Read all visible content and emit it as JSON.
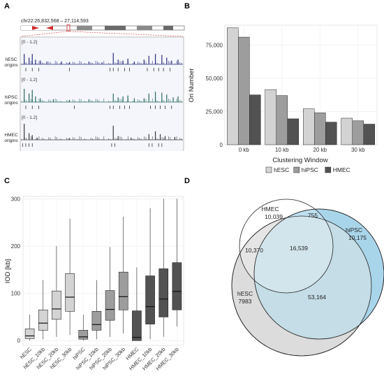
{
  "panels": {
    "a": {
      "letter": "A",
      "coords": "chr22:26,832,568 – 27,114,593",
      "tracks": [
        {
          "label_line1": "hESC",
          "label_line2": "origins",
          "range": "[0 - 1.2]",
          "color": "#2b2f7c",
          "peaks": [
            [
              0.02,
              0.55
            ],
            [
              0.05,
              0.35
            ],
            [
              0.07,
              0.55
            ],
            [
              0.09,
              0.25
            ],
            [
              0.12,
              0.2
            ],
            [
              0.16,
              0.15
            ],
            [
              0.25,
              0.15
            ],
            [
              0.3,
              0.12
            ],
            [
              0.42,
              0.15
            ],
            [
              0.5,
              0.1
            ],
            [
              0.57,
              0.6
            ],
            [
              0.6,
              0.25
            ],
            [
              0.63,
              0.2
            ],
            [
              0.66,
              0.3
            ],
            [
              0.7,
              0.15
            ],
            [
              0.76,
              0.25
            ],
            [
              0.79,
              0.45
            ],
            [
              0.83,
              0.55
            ],
            [
              0.87,
              0.5
            ],
            [
              0.9,
              0.35
            ],
            [
              0.93,
              0.2
            ],
            [
              0.97,
              0.25
            ]
          ],
          "ticks": [
            0.03,
            0.07,
            0.11,
            0.3,
            0.55,
            0.57,
            0.6,
            0.64,
            0.67,
            0.78,
            0.82,
            0.85,
            0.88,
            0.92
          ]
        },
        {
          "label_line1": "hiPSC",
          "label_line2": "origins",
          "range": "[0 - 1.2]",
          "color": "#2a6b5e",
          "peaks": [
            [
              0.02,
              0.7
            ],
            [
              0.05,
              0.45
            ],
            [
              0.07,
              0.65
            ],
            [
              0.09,
              0.3
            ],
            [
              0.12,
              0.2
            ],
            [
              0.2,
              0.15
            ],
            [
              0.3,
              0.12
            ],
            [
              0.42,
              0.15
            ],
            [
              0.57,
              0.45
            ],
            [
              0.6,
              0.25
            ],
            [
              0.63,
              0.3
            ],
            [
              0.66,
              0.35
            ],
            [
              0.7,
              0.2
            ],
            [
              0.76,
              0.2
            ],
            [
              0.79,
              0.45
            ],
            [
              0.83,
              0.55
            ],
            [
              0.87,
              0.5
            ],
            [
              0.9,
              0.4
            ],
            [
              0.94,
              0.25
            ],
            [
              0.97,
              0.3
            ]
          ],
          "ticks": [
            0.03,
            0.07,
            0.11,
            0.33,
            0.55,
            0.57,
            0.61,
            0.64,
            0.67,
            0.8,
            0.83,
            0.86,
            0.89,
            0.93
          ]
        },
        {
          "label_line1": "HMEC",
          "label_line2": "origins",
          "range": "[0 - 1.2]",
          "color": "#3a3a3a",
          "peaks": [
            [
              0.02,
              0.85
            ],
            [
              0.05,
              0.35
            ],
            [
              0.07,
              0.25
            ],
            [
              0.1,
              0.12
            ],
            [
              0.3,
              0.1
            ],
            [
              0.57,
              0.75
            ],
            [
              0.6,
              0.2
            ],
            [
              0.68,
              0.12
            ],
            [
              0.79,
              0.3
            ],
            [
              0.83,
              0.45
            ],
            [
              0.86,
              0.3
            ],
            [
              0.89,
              0.2
            ],
            [
              0.95,
              0.15
            ]
          ],
          "ticks": [
            0.01,
            0.03,
            0.05,
            0.07,
            0.56,
            0.58,
            0.79,
            0.81,
            0.85,
            0.87
          ]
        }
      ]
    },
    "b": {
      "letter": "B",
      "legend": {
        "entries": [
          {
            "name": "hESC",
            "color": "#d3d3d3"
          },
          {
            "name": "hiPSC",
            "color": "#9d9d9d"
          },
          {
            "name": "HMEC",
            "color": "#525252"
          }
        ]
      }
    },
    "c": {
      "letter": "C"
    },
    "d": {
      "letter": "D",
      "sets": [
        {
          "name": "HMEC",
          "total": "10,039",
          "color": "#ffffff"
        },
        {
          "name": "hiPSC",
          "total": "10,175",
          "color": "#a9d5ea"
        },
        {
          "name": "hESC",
          "total": "7983",
          "color": "#dcdcdc"
        }
      ],
      "overlaps": [
        {
          "sets": "HMEC ∩ hiPSC only",
          "value": "755"
        },
        {
          "sets": "HMEC ∩ hESC only",
          "value": "10,370"
        },
        {
          "sets": "HMEC ∩ hiPSC ∩ hESC",
          "value": "16,539"
        },
        {
          "sets": "hiPSC ∩ hESC only",
          "value": "53,164"
        }
      ]
    }
  },
  "chart_data": [
    {
      "type": "bar",
      "panel": "B",
      "categories": [
        "0 kb",
        "10 kb",
        "20 kb",
        "30 kb"
      ],
      "series": [
        {
          "name": "hESC",
          "values": [
            88000,
            41500,
            27000,
            20000
          ],
          "color": "#d3d3d3"
        },
        {
          "name": "hiPSC",
          "values": [
            81000,
            37000,
            24000,
            18000
          ],
          "color": "#9d9d9d"
        },
        {
          "name": "HMEC",
          "values": [
            37500,
            19500,
            17000,
            15500
          ],
          "color": "#525252"
        }
      ],
      "title": "",
      "xlabel": "Clustering Window",
      "ylabel": "Ori Number",
      "ylim": [
        0,
        90000
      ],
      "yticks": [
        0,
        25000,
        50000,
        75000
      ],
      "ytick_labels": [
        "0",
        "25,000",
        "50,000",
        "75,000"
      ],
      "grid": true,
      "legend_position": "bottom"
    },
    {
      "type": "box",
      "panel": "C",
      "categories": [
        "hESC",
        "hESC_10kb",
        "hESC_20kb",
        "hESC_30kb",
        "hiPSC",
        "hiPSC_10kb",
        "hiPSC_20kb",
        "hiPSC_30kb",
        "HMEC",
        "HMEC_10kb",
        "HMEC_20kb",
        "HMEC_30kb"
      ],
      "boxes": [
        {
          "whisker_low": 0,
          "q1": 4,
          "median": 10,
          "q3": 25,
          "whisker_high": 55,
          "color": "#d3d3d3"
        },
        {
          "whisker_low": 3,
          "q1": 22,
          "median": 37,
          "q3": 65,
          "whisker_high": 128,
          "color": "#d3d3d3"
        },
        {
          "whisker_low": 8,
          "q1": 45,
          "median": 67,
          "q3": 105,
          "whisker_high": 200,
          "color": "#d3d3d3"
        },
        {
          "whisker_low": 12,
          "q1": 62,
          "median": 92,
          "q3": 142,
          "whisker_high": 258,
          "color": "#d3d3d3"
        },
        {
          "whisker_low": 0,
          "q1": 3,
          "median": 8,
          "q3": 22,
          "whisker_high": 55,
          "color": "#9d9d9d"
        },
        {
          "whisker_low": 3,
          "q1": 22,
          "median": 34,
          "q3": 62,
          "whisker_high": 128,
          "color": "#9d9d9d"
        },
        {
          "whisker_low": 8,
          "q1": 43,
          "median": 66,
          "q3": 106,
          "whisker_high": 198,
          "color": "#9d9d9d"
        },
        {
          "whisker_low": 15,
          "q1": 65,
          "median": 93,
          "q3": 145,
          "whisker_high": 262,
          "color": "#9d9d9d"
        },
        {
          "whisker_low": 0,
          "q1": 0,
          "median": 7,
          "q3": 63,
          "whisker_high": 155,
          "color": "#525252"
        },
        {
          "whisker_low": 3,
          "q1": 35,
          "median": 72,
          "q3": 137,
          "whisker_high": 280,
          "color": "#525252"
        },
        {
          "whisker_low": 8,
          "q1": 50,
          "median": 88,
          "q3": 152,
          "whisker_high": 300,
          "color": "#525252"
        },
        {
          "whisker_low": 30,
          "q1": 65,
          "median": 104,
          "q3": 165,
          "whisker_high": 300,
          "color": "#525252"
        }
      ],
      "title": "",
      "xlabel": "",
      "ylabel": "IOD [kb]",
      "ylim": [
        -10,
        305
      ],
      "yticks": [
        0,
        100,
        200,
        300
      ],
      "grid": true
    }
  ]
}
